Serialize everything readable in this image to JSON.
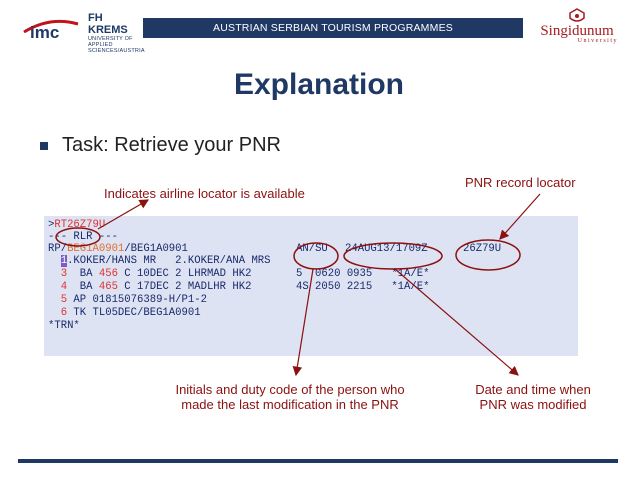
{
  "header": {
    "banner": "AUSTRIAN SERBIAN TOURISM PROGRAMMES",
    "logo_imc": "imc",
    "logo_fh_title": "FH KREMS",
    "logo_fh_sub1": "UNIVERSITY OF APPLIED",
    "logo_fh_sub2": "SCIENCES/AUSTRIA",
    "logo_sing_name": "Singidunum",
    "logo_sing_sub": "University"
  },
  "title": "Explanation",
  "bullet": "Task: Retrieve your PNR",
  "annotations": {
    "airline_locator": "Indicates airline locator is available",
    "pnr_locator": "PNR record locator",
    "initials_line1": "Initials and duty code of the person who",
    "initials_line2": "made the last modification in the PNR",
    "date_line1": "Date and time when",
    "date_line2": "PNR was modified"
  },
  "pnr": {
    "cmd_prefix": ">",
    "cmd": "RT26Z79U",
    "rlr": "--- RLR ---",
    "rp_prefix": "RP/",
    "rp_office": "BEG1A0901",
    "rp_rest": "/BEG1A0901",
    "agent": "AN/SU",
    "datetime": "24AUG13/1709Z",
    "locator": "26Z79U",
    "names_num1": "1",
    "names_rest": ".KOKER/HANS MR   2.KOKER/ANA MRS",
    "seg3_num": "  3",
    "seg3_air": "  BA ",
    "seg3_flt": "456",
    "seg3_rest": " C 10DEC 2 LHRMAD HK2       5  0620 0935   *1A/E*",
    "seg4_num": "  4",
    "seg4_air": "  BA ",
    "seg4_flt": "465",
    "seg4_rest": " C 17DEC 2 MADLHR HK2       4S 2050 2215   *1A/E*",
    "ap_num": "  5",
    "ap_rest": " AP 01815076389-H/P1-2",
    "tk_num": "  6",
    "tk_rest": " TK TL05DEC/BEG1A0901",
    "trn": "*TRN*"
  }
}
